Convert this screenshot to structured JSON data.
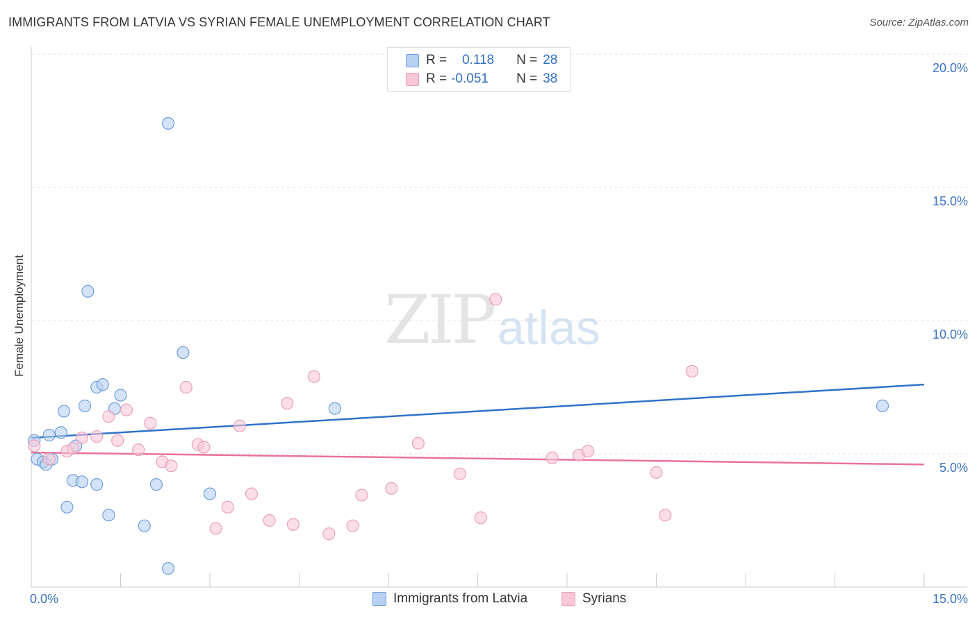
{
  "title": "IMMIGRANTS FROM LATVIA VS SYRIAN FEMALE UNEMPLOYMENT CORRELATION CHART",
  "source": "Source: ZipAtlas.com",
  "watermark": {
    "zip": "ZIP",
    "atlas": "atlas"
  },
  "legend": {
    "rows": [
      {
        "r_label": "R =",
        "r_value": "0.118",
        "n_label": "N =",
        "n_value": "28",
        "color": "#aac8f0",
        "border": "#6a9ad8"
      },
      {
        "r_label": "R =",
        "r_value": "-0.051",
        "n_label": "N =",
        "n_value": "38",
        "color": "#f7c0d2",
        "border": "#e890ae"
      }
    ]
  },
  "colors": {
    "blue_fill": "#b8d0f2",
    "blue_stroke": "#6f9edb",
    "blue_line": "#2f72c8",
    "pink_fill": "#f8c8d8",
    "pink_stroke": "#e9a0ba",
    "pink_line": "#e8729a",
    "tick_text": "#3a72c4"
  },
  "chart_data": {
    "type": "scatter",
    "title": "IMMIGRANTS FROM LATVIA VS SYRIAN FEMALE UNEMPLOYMENT CORRELATION CHART",
    "xlabel": "",
    "ylabel": "Female Unemployment",
    "xlim": [
      0,
      15
    ],
    "ylim": [
      0,
      20
    ],
    "x_tick_labels": [
      "0.0%",
      "15.0%"
    ],
    "y_ticks": [
      5,
      10,
      15,
      20
    ],
    "y_tick_labels": [
      "5.0%",
      "10.0%",
      "15.0%",
      "20.0%"
    ],
    "grid": "horizontal dashed",
    "legend_position": "top-center and bottom",
    "series": [
      {
        "name": "Immigrants from Latvia",
        "trend": {
          "x": [
            0,
            15
          ],
          "y": [
            5.6,
            7.6
          ]
        },
        "points": [
          {
            "x": 0.05,
            "y": 5.5
          },
          {
            "x": 0.1,
            "y": 4.8
          },
          {
            "x": 0.2,
            "y": 4.7
          },
          {
            "x": 0.25,
            "y": 4.6
          },
          {
            "x": 0.35,
            "y": 4.8
          },
          {
            "x": 0.3,
            "y": 5.7
          },
          {
            "x": 0.5,
            "y": 5.8
          },
          {
            "x": 0.55,
            "y": 6.6
          },
          {
            "x": 0.6,
            "y": 3.0
          },
          {
            "x": 0.7,
            "y": 4.0
          },
          {
            "x": 0.75,
            "y": 5.3
          },
          {
            "x": 0.85,
            "y": 3.95
          },
          {
            "x": 0.9,
            "y": 6.8
          },
          {
            "x": 0.95,
            "y": 11.1
          },
          {
            "x": 1.1,
            "y": 3.85
          },
          {
            "x": 1.1,
            "y": 7.5
          },
          {
            "x": 1.2,
            "y": 7.6
          },
          {
            "x": 1.3,
            "y": 2.7
          },
          {
            "x": 1.4,
            "y": 6.7
          },
          {
            "x": 1.5,
            "y": 7.2
          },
          {
            "x": 1.9,
            "y": 2.3
          },
          {
            "x": 2.1,
            "y": 3.85
          },
          {
            "x": 2.3,
            "y": 0.7
          },
          {
            "x": 2.3,
            "y": 17.4
          },
          {
            "x": 2.55,
            "y": 8.8
          },
          {
            "x": 3.0,
            "y": 3.5
          },
          {
            "x": 5.1,
            "y": 6.7
          },
          {
            "x": 14.3,
            "y": 6.8
          }
        ]
      },
      {
        "name": "Syrians",
        "trend": {
          "x": [
            0,
            15
          ],
          "y": [
            5.05,
            4.6
          ]
        },
        "points": [
          {
            "x": 0.05,
            "y": 5.3
          },
          {
            "x": 0.3,
            "y": 4.8
          },
          {
            "x": 0.6,
            "y": 5.1
          },
          {
            "x": 0.7,
            "y": 5.2
          },
          {
            "x": 0.85,
            "y": 5.6
          },
          {
            "x": 1.1,
            "y": 5.65
          },
          {
            "x": 1.3,
            "y": 6.4
          },
          {
            "x": 1.45,
            "y": 5.5
          },
          {
            "x": 1.6,
            "y": 6.65
          },
          {
            "x": 1.8,
            "y": 5.15
          },
          {
            "x": 2.0,
            "y": 6.15
          },
          {
            "x": 2.2,
            "y": 4.7
          },
          {
            "x": 2.35,
            "y": 4.55
          },
          {
            "x": 2.6,
            "y": 7.5
          },
          {
            "x": 2.8,
            "y": 5.35
          },
          {
            "x": 2.9,
            "y": 5.25
          },
          {
            "x": 3.1,
            "y": 2.2
          },
          {
            "x": 3.3,
            "y": 3.0
          },
          {
            "x": 3.5,
            "y": 6.05
          },
          {
            "x": 3.7,
            "y": 3.5
          },
          {
            "x": 4.0,
            "y": 2.5
          },
          {
            "x": 4.3,
            "y": 6.9
          },
          {
            "x": 4.4,
            "y": 2.35
          },
          {
            "x": 4.75,
            "y": 7.9
          },
          {
            "x": 5.0,
            "y": 2.0
          },
          {
            "x": 5.4,
            "y": 2.3
          },
          {
            "x": 5.55,
            "y": 3.45
          },
          {
            "x": 6.05,
            "y": 3.7
          },
          {
            "x": 6.5,
            "y": 5.4
          },
          {
            "x": 7.2,
            "y": 4.25
          },
          {
            "x": 7.55,
            "y": 2.6
          },
          {
            "x": 7.8,
            "y": 10.8
          },
          {
            "x": 8.75,
            "y": 4.85
          },
          {
            "x": 9.2,
            "y": 4.95
          },
          {
            "x": 9.35,
            "y": 5.1
          },
          {
            "x": 10.5,
            "y": 4.3
          },
          {
            "x": 10.65,
            "y": 2.7
          },
          {
            "x": 11.1,
            "y": 8.1
          }
        ]
      }
    ]
  },
  "bottom_legend": [
    {
      "label": "Immigrants from Latvia"
    },
    {
      "label": "Syrians"
    }
  ]
}
